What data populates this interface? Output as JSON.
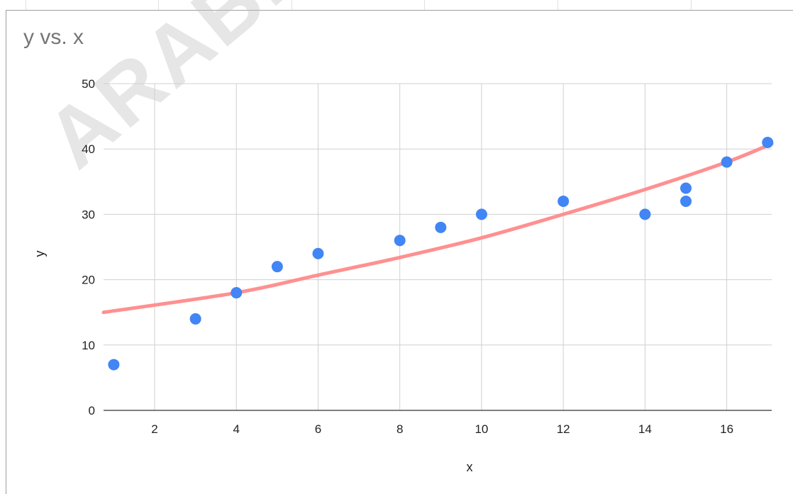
{
  "watermark": "ARABPSY",
  "chart_data": {
    "type": "scatter",
    "title": "y vs. x",
    "xlabel": "x",
    "ylabel": "y",
    "xlim": [
      0.75,
      17.1
    ],
    "ylim": [
      0,
      50
    ],
    "xticks": [
      2,
      4,
      6,
      8,
      10,
      12,
      14,
      16
    ],
    "yticks": [
      0,
      10,
      20,
      30,
      40,
      50
    ],
    "grid": true,
    "legend": "none",
    "series": [
      {
        "type": "scatter",
        "color": "#4285f4",
        "x": [
          1,
          3,
          4,
          5,
          6,
          8,
          9,
          10,
          12,
          14,
          15,
          15,
          16,
          17
        ],
        "y": [
          7,
          14,
          18,
          22,
          24,
          26,
          28,
          30,
          32,
          30,
          34,
          32,
          38,
          41
        ]
      },
      {
        "type": "line",
        "color": "#ff8a8a",
        "x": [
          0.75,
          4,
          6,
          8,
          10,
          12,
          14,
          16,
          17.1
        ],
        "y": [
          15,
          18,
          20.7,
          23.4,
          26.4,
          30,
          33.8,
          38,
          40.8
        ]
      }
    ]
  }
}
